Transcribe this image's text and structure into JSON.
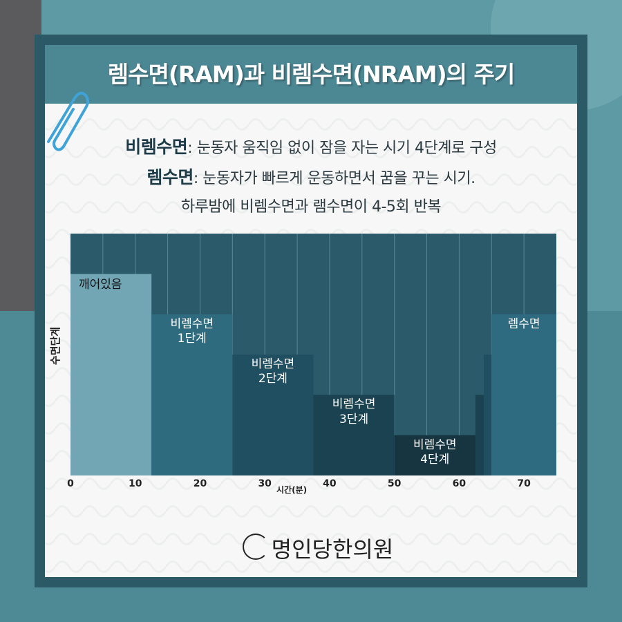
{
  "title": "렘수면(RAM)과 비렘수면(NRAM)의 주기",
  "description": [
    {
      "term": "비렘수면",
      "text": ": 눈동자 움직임 없이 잠을 자는 시기 4단계로 구성"
    },
    {
      "term": "렘수면",
      "text": ": 눈동자가 빠르게 운동하면서 꿈을 꾸는 시기."
    },
    {
      "term": null,
      "text": "하루밤에 비렘수면과 램수면이 4-5회 반복"
    }
  ],
  "chart_data": {
    "type": "step-bar",
    "x_label": "시간(분)",
    "y_label": "수면단계",
    "xlim": [
      0,
      75
    ],
    "xticks": [
      0,
      10,
      20,
      30,
      40,
      50,
      60,
      70
    ],
    "xgrid": [
      5,
      10,
      15,
      20,
      25,
      30,
      35,
      40,
      45,
      50,
      55,
      60,
      65,
      70
    ],
    "ylim": [
      0,
      6
    ],
    "plot_color": "#2b5a6b",
    "segments": [
      {
        "label": "깨어있음",
        "start": 0,
        "end": 12.5,
        "value": 5,
        "color": "#72a6b5"
      },
      {
        "label": "비렘수면\n1단계",
        "start": 12.5,
        "end": 25,
        "value": 4,
        "color": "#2f6b7f"
      },
      {
        "label": "비렘수면\n2단계",
        "start": 25,
        "end": 37.5,
        "value": 3,
        "color": "#1f4f60"
      },
      {
        "label": "비렘수면\n3단계",
        "start": 37.5,
        "end": 50,
        "value": 2,
        "color": "#1a4250"
      },
      {
        "label": "비렘수면\n4단계",
        "start": 50,
        "end": 62.5,
        "value": 1,
        "color": "#163541"
      },
      {
        "label": null,
        "start": 62.5,
        "end": 63.8,
        "value": 2,
        "color": "#1a4250"
      },
      {
        "label": null,
        "start": 63.8,
        "end": 65,
        "value": 3,
        "color": "#1f4f60"
      },
      {
        "label": "렘수면",
        "start": 65,
        "end": 75,
        "value": 4,
        "color": "#2f6b80"
      }
    ]
  },
  "logo": "명인당한의원"
}
